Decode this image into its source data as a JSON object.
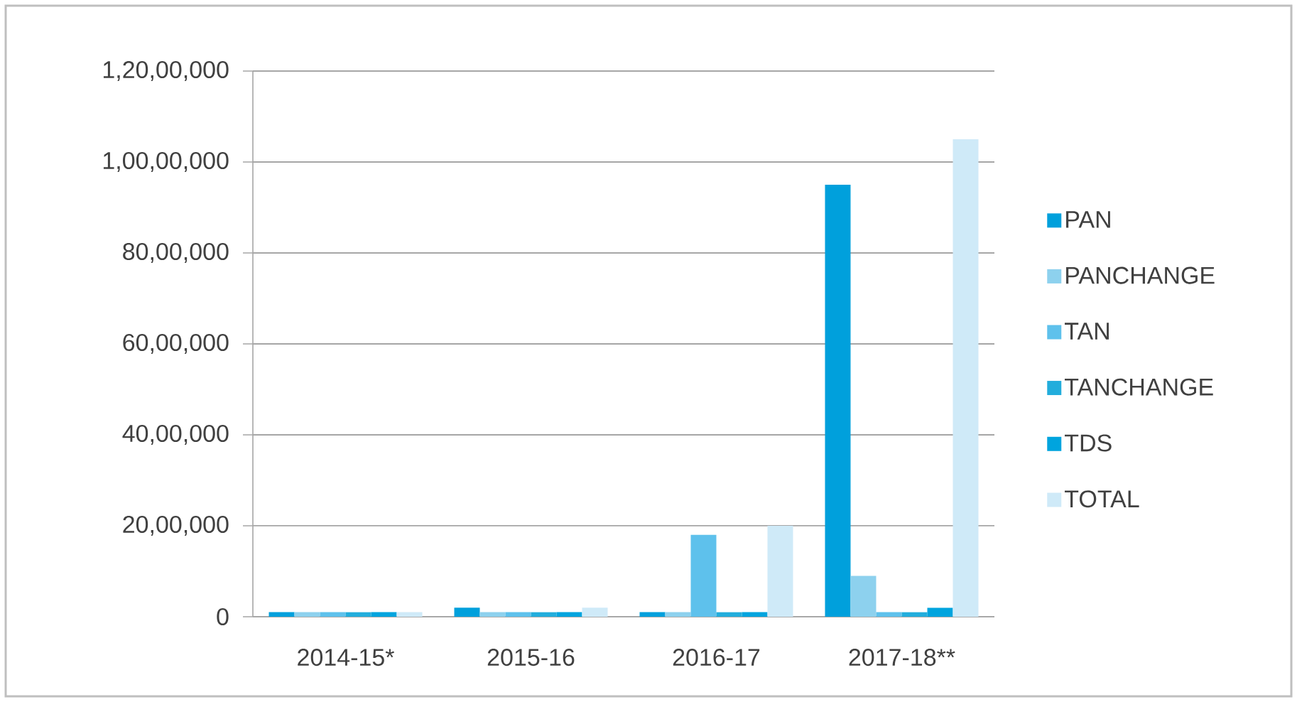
{
  "chart_data": {
    "type": "bar",
    "categories": [
      "2014-15*",
      "2015-16",
      "2016-17",
      "2017-18**"
    ],
    "series": [
      {
        "name": "PAN",
        "color": "#00a0dc",
        "values": [
          100000,
          200000,
          100000,
          9500000
        ]
      },
      {
        "name": "PANCHANGE",
        "color": "#8dd1ee",
        "values": [
          100000,
          100000,
          100000,
          900000
        ]
      },
      {
        "name": "TAN",
        "color": "#5ec1ec",
        "values": [
          100000,
          100000,
          1800000,
          100000
        ]
      },
      {
        "name": "TANCHANGE",
        "color": "#22addc",
        "values": [
          100000,
          100000,
          100000,
          100000
        ]
      },
      {
        "name": "TDS",
        "color": "#00a4de",
        "values": [
          100000,
          100000,
          100000,
          200000
        ]
      },
      {
        "name": "TOTAL",
        "color": "#cfeaf8",
        "values": [
          100000,
          200000,
          2000000,
          10500000
        ]
      }
    ],
    "ylim": [
      0,
      12000000
    ],
    "yticks": [
      0,
      {
        "value": 2000000,
        "label": "20,00,000"
      },
      {
        "value": 4000000,
        "label": "40,00,000"
      },
      {
        "value": 6000000,
        "label": "60,00,000"
      },
      {
        "value": 8000000,
        "label": "80,00,000"
      },
      {
        "value": 10000000,
        "label": "1,00,00,000"
      },
      {
        "value": 12000000,
        "label": "1,20,00,000"
      }
    ],
    "grid": "y",
    "legend": "right"
  }
}
